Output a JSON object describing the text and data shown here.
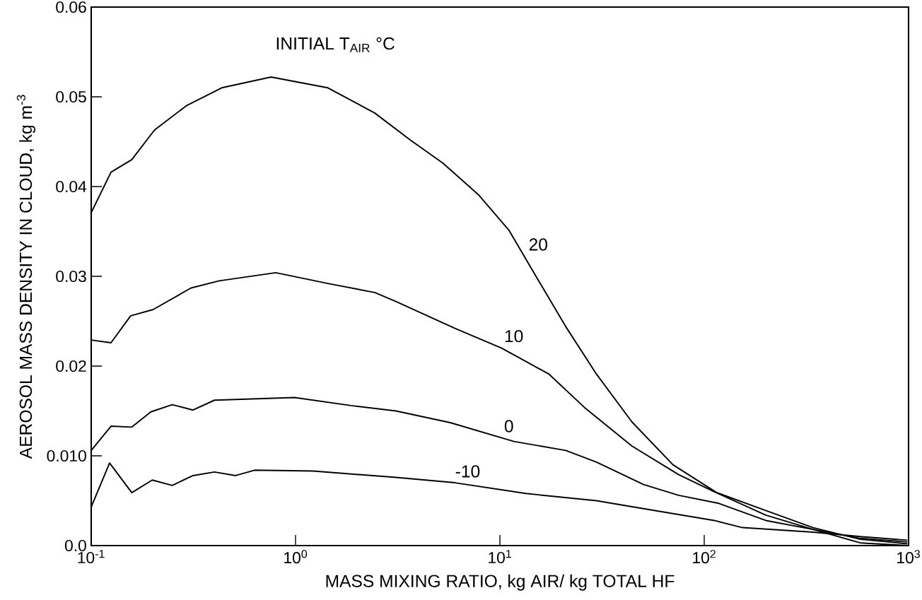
{
  "chart_data": {
    "type": "line",
    "log": "x",
    "xlabel": "MASS MIXING RATIO, kg AIR/ kg  TOTAL HF",
    "ylabel": "AEROSOL MASS DENSITY IN CLOUD, kg m$^{-3}$",
    "annotations": [
      "INITIAL T$_{AIR}$ °C"
    ],
    "xlim": [
      0.1,
      1000
    ],
    "ylim": [
      0,
      0.06
    ],
    "xticks": [
      {
        "value": 0.1,
        "label": "10$^{-1}$"
      },
      {
        "value": 1,
        "label": "10$^{0}$"
      },
      {
        "value": 10,
        "label": "10$^{1}$"
      },
      {
        "value": 100,
        "label": "10$^{2}$"
      },
      {
        "value": 1000,
        "label": "10$^{3}$"
      }
    ],
    "yticks": [
      {
        "value": 0,
        "label": "0.0"
      },
      {
        "value": 0.01,
        "label": "0.010"
      },
      0.02,
      0.03,
      0.04,
      0.05,
      0.06
    ],
    "series": [
      {
        "name": "20",
        "color": "#000000",
        "x": [
          0.1,
          0.125,
          0.158,
          0.204,
          0.292,
          0.435,
          0.759,
          1.44,
          2.44,
          3.64,
          5.27,
          7.85,
          11.1,
          15.2,
          21.0,
          29.7,
          44.2,
          70.3,
          117,
          200,
          341,
          581,
          986
        ],
        "values": [
          0.0371,
          0.0416,
          0.043,
          0.0463,
          0.049,
          0.051,
          0.0522,
          0.051,
          0.0482,
          0.0452,
          0.0426,
          0.0391,
          0.0351,
          0.0298,
          0.0244,
          0.0191,
          0.0138,
          0.009,
          0.0058,
          0.0034,
          0.0018,
          0.0003,
          0.0
        ]
      },
      {
        "name": "10",
        "color": "#000000",
        "x": [
          0.1,
          0.125,
          0.156,
          0.201,
          0.308,
          0.423,
          0.8,
          1.44,
          2.44,
          3.1,
          6.03,
          10.2,
          17.4,
          25.9,
          44.2,
          75.0,
          112,
          200,
          341,
          581,
          986
        ],
        "values": [
          0.0229,
          0.0226,
          0.0256,
          0.0263,
          0.0287,
          0.0295,
          0.0304,
          0.0292,
          0.0282,
          0.0272,
          0.0242,
          0.022,
          0.0191,
          0.0154,
          0.0111,
          0.0079,
          0.006,
          0.0039,
          0.002,
          0.0007,
          0.0002
        ]
      },
      {
        "name": "0",
        "color": "#000000",
        "x": [
          0.1,
          0.125,
          0.158,
          0.196,
          0.249,
          0.315,
          0.401,
          0.989,
          1.87,
          3.1,
          5.71,
          11.7,
          21.0,
          29.7,
          50.5,
          75.0,
          118,
          200,
          341,
          581,
          986
        ],
        "values": [
          0.0106,
          0.0133,
          0.0132,
          0.0149,
          0.0157,
          0.0151,
          0.0162,
          0.0165,
          0.0156,
          0.015,
          0.0137,
          0.0116,
          0.0106,
          0.0093,
          0.0068,
          0.0056,
          0.0047,
          0.0028,
          0.0018,
          0.0008,
          0.0004
        ]
      },
      {
        "name": "-10",
        "color": "#000000",
        "x": [
          0.1,
          0.123,
          0.158,
          0.199,
          0.249,
          0.315,
          0.401,
          0.509,
          0.63,
          1.22,
          3.1,
          6.03,
          13.4,
          29.7,
          57.5,
          112,
          154,
          341,
          581,
          986
        ],
        "values": [
          0.0043,
          0.0092,
          0.0059,
          0.0073,
          0.0067,
          0.0078,
          0.0082,
          0.0078,
          0.0084,
          0.0083,
          0.0076,
          0.007,
          0.0058,
          0.005,
          0.0039,
          0.0028,
          0.002,
          0.0015,
          0.001,
          0.0006
        ]
      }
    ]
  }
}
